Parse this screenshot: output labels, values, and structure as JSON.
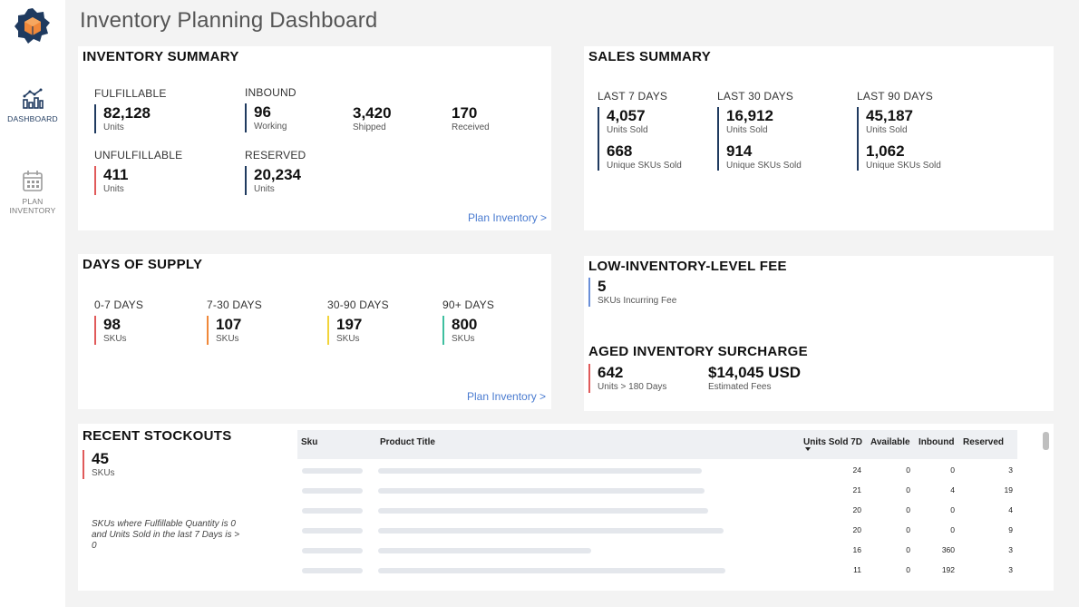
{
  "app": {
    "title": "Inventory Planning Dashboard"
  },
  "sidebar": {
    "items": [
      {
        "label": "DASHBOARD",
        "icon": "chart-icon",
        "active": true
      },
      {
        "label_line1": "PLAN",
        "label_line2": "INVENTORY",
        "icon": "calendar-icon",
        "active": false
      }
    ]
  },
  "inventory_summary": {
    "title": "INVENTORY SUMMARY",
    "fulfillable": {
      "label": "FULFILLABLE",
      "value": "82,128",
      "sub": "Units"
    },
    "inbound": {
      "label": "INBOUND",
      "working": {
        "value": "96",
        "sub": "Working"
      },
      "shipped": {
        "value": "3,420",
        "sub": "Shipped"
      },
      "received": {
        "value": "170",
        "sub": "Received"
      }
    },
    "unfulfillable": {
      "label": "UNFULFILLABLE",
      "value": "411",
      "sub": "Units"
    },
    "reserved": {
      "label": "RESERVED",
      "value": "20,234",
      "sub": "Units"
    },
    "link": "Plan Inventory >"
  },
  "sales_summary": {
    "title": "SALES SUMMARY",
    "periods": [
      {
        "label": "LAST 7 DAYS",
        "units": "4,057",
        "units_sub": "Units Sold",
        "skus": "668",
        "skus_sub": "Unique SKUs Sold"
      },
      {
        "label": "LAST 30 DAYS",
        "units": "16,912",
        "units_sub": "Units Sold",
        "skus": "914",
        "skus_sub": "Unique SKUs Sold"
      },
      {
        "label": "LAST 90 DAYS",
        "units": "45,187",
        "units_sub": "Units Sold",
        "skus": "1,062",
        "skus_sub": "Unique SKUs Sold"
      }
    ]
  },
  "days_of_supply": {
    "title": "DAYS OF SUPPLY",
    "buckets": [
      {
        "label": "0-7 DAYS",
        "value": "98",
        "sub": "SKUs",
        "color": "#e05a5a"
      },
      {
        "label": "7-30 DAYS",
        "value": "107",
        "sub": "SKUs",
        "color": "#f0883a"
      },
      {
        "label": "30-90 DAYS",
        "value": "197",
        "sub": "SKUs",
        "color": "#f2d43a"
      },
      {
        "label": "90+ DAYS",
        "value": "800",
        "sub": "SKUs",
        "color": "#3fbfa0"
      }
    ],
    "link": "Plan Inventory >"
  },
  "low_inventory_fee": {
    "title": "LOW-INVENTORY-LEVEL FEE",
    "value": "5",
    "sub": "SKUs Incurring Fee",
    "color": "#6a8fd8"
  },
  "aged_inventory": {
    "title": "AGED INVENTORY SURCHARGE",
    "units": "642",
    "units_sub": "Units > 180 Days",
    "fees": "$14,045 USD",
    "fees_sub": "Estimated Fees",
    "color": "#e05a5a"
  },
  "recent_stockouts": {
    "title": "RECENT STOCKOUTS",
    "value": "45",
    "sub": "SKUs",
    "note": "SKUs where Fulfillable Quantity is 0 and Units Sold in the last 7 Days is > 0",
    "color": "#e05a5a",
    "columns": {
      "sku": "Sku",
      "title": "Product Title",
      "units_sold": "Units Sold 7D",
      "available": "Available",
      "inbound": "Inbound",
      "reserved": "Reserved"
    },
    "rows": [
      {
        "units_sold": "24",
        "available": "0",
        "inbound": "0",
        "reserved": "3"
      },
      {
        "units_sold": "21",
        "available": "0",
        "inbound": "4",
        "reserved": "19"
      },
      {
        "units_sold": "20",
        "available": "0",
        "inbound": "0",
        "reserved": "4"
      },
      {
        "units_sold": "20",
        "available": "0",
        "inbound": "0",
        "reserved": "9"
      },
      {
        "units_sold": "16",
        "available": "0",
        "inbound": "360",
        "reserved": "3"
      },
      {
        "units_sold": "11",
        "available": "0",
        "inbound": "192",
        "reserved": "3"
      }
    ]
  },
  "colors": {
    "navy": "#1f3a5f",
    "accent_orange": "#f0883a",
    "link_blue": "#4a7bd0"
  }
}
